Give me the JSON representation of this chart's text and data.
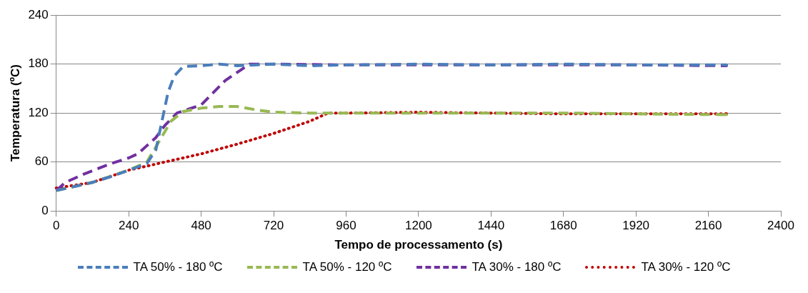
{
  "chart_data": {
    "type": "line",
    "xlabel": "Tempo de processamento (s)",
    "ylabel": "Temperatura (ºC)",
    "xlim": [
      0,
      2400
    ],
    "xticks": [
      0,
      240,
      480,
      720,
      960,
      1200,
      1440,
      1680,
      1920,
      2160,
      2400
    ],
    "ylim": [
      0,
      240
    ],
    "yticks": [
      0,
      60,
      120,
      180,
      240
    ],
    "grid": "y",
    "legend": "bottom",
    "marker": "none",
    "series": [
      {
        "name": "TA 50% - 180 ºC",
        "color": "#4a7ebb",
        "line_style": "dashed",
        "x": [
          0,
          60,
          120,
          180,
          240,
          300,
          330,
          350,
          370,
          390,
          420,
          480,
          540,
          600,
          720,
          840,
          960,
          1200,
          1440,
          1680,
          1920,
          2220
        ],
        "values": [
          25,
          30,
          35,
          42,
          50,
          58,
          75,
          110,
          145,
          165,
          177,
          178,
          180,
          178,
          180,
          178,
          179,
          180,
          179,
          180,
          179,
          179
        ]
      },
      {
        "name": "TA 50% - 120 ºC",
        "color": "#98b954",
        "line_style": "dashed",
        "x": [
          0,
          120,
          240,
          300,
          340,
          380,
          420,
          480,
          540,
          600,
          660,
          720,
          840,
          960,
          1200,
          1440,
          1680,
          1920,
          2220
        ],
        "values": [
          25,
          35,
          50,
          60,
          85,
          110,
          122,
          126,
          128,
          128,
          124,
          121,
          120,
          120,
          120,
          120,
          120,
          119,
          118
        ]
      },
      {
        "name": "TA 30% - 180 ºC",
        "color": "#7030a0",
        "line_style": "dashed",
        "x": [
          0,
          30,
          90,
          180,
          240,
          270,
          300,
          330,
          360,
          400,
          440,
          480,
          520,
          560,
          600,
          640,
          720,
          960,
          1200,
          1440,
          1680,
          1920,
          2220
        ],
        "values": [
          25,
          35,
          45,
          58,
          65,
          70,
          80,
          90,
          105,
          120,
          125,
          130,
          145,
          160,
          170,
          180,
          180,
          179,
          179,
          179,
          179,
          179,
          178
        ]
      },
      {
        "name": "TA 30% - 120 ºC",
        "color": "#c00000",
        "line_style": "dotted",
        "x": [
          0,
          120,
          240,
          360,
          480,
          600,
          720,
          840,
          900,
          960,
          1200,
          1440,
          1680,
          1920,
          2220
        ],
        "values": [
          28,
          35,
          50,
          60,
          70,
          82,
          95,
          110,
          120,
          120,
          121,
          120,
          119,
          119,
          119
        ]
      }
    ]
  }
}
